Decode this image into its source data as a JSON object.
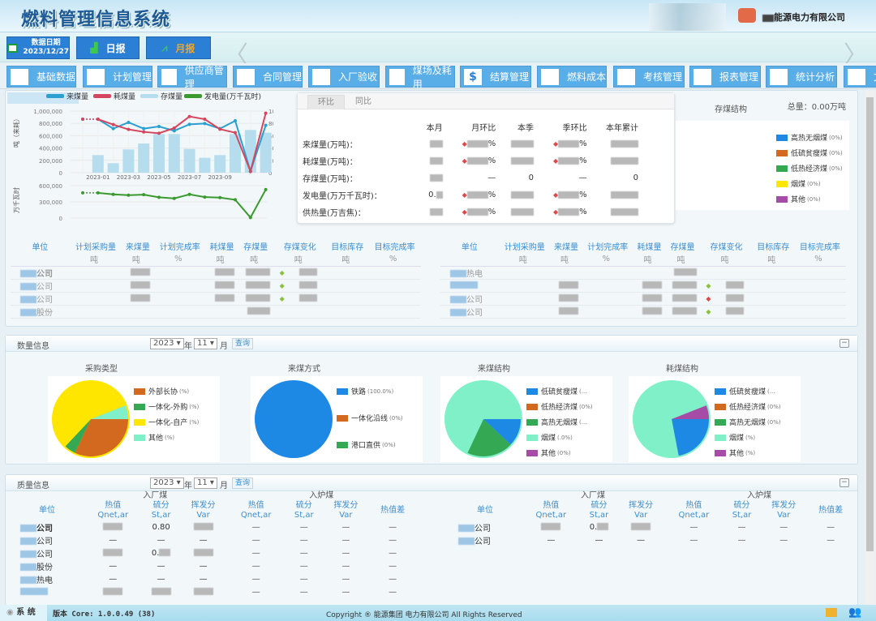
{
  "header": {
    "title": "燃料管理信息系统",
    "company": "能源电力有限公司"
  },
  "toolbar": {
    "date_label": "数据日期",
    "date_value": "2023/12/27",
    "daily": "日报",
    "monthly": "月报"
  },
  "menu": [
    {
      "label": "基础数据",
      "icon": "database-icon"
    },
    {
      "label": "计划管理",
      "icon": "document-icon"
    },
    {
      "label": "供应商管理",
      "icon": "users-icon"
    },
    {
      "label": "合同管理",
      "icon": "contract-icon"
    },
    {
      "label": "入厂验收",
      "icon": "truck-icon"
    },
    {
      "label": "煤场及耗用",
      "icon": "mountain-icon"
    },
    {
      "label": "结算管理",
      "icon": "dollar-icon"
    },
    {
      "label": "燃料成本",
      "icon": "calculator-icon"
    },
    {
      "label": "考核管理",
      "icon": "checklist-icon"
    },
    {
      "label": "报表管理",
      "icon": "clipboard-icon"
    },
    {
      "label": "统计分析",
      "icon": "growth-chart-icon"
    },
    {
      "label": "文",
      "icon": "file-icon"
    }
  ],
  "chart_data": {
    "type": "line",
    "legend": [
      "来煤量",
      "耗煤量",
      "存煤量",
      "发电量(万千瓦时)"
    ],
    "legend_position": "top",
    "x": [
      "2022-12",
      "2023-01",
      "2023-02",
      "2023-03",
      "2023-04",
      "2023-05",
      "2023-06",
      "2023-07",
      "2023-08",
      "2023-09",
      "2023-10",
      "2023-11",
      "2023-12"
    ],
    "x_tick_labels": [
      "2023-01",
      "2023-03",
      "2023-05",
      "2023-07",
      "2023-09"
    ],
    "ylabel": "吨（来耗）",
    "y2label": "(%)",
    "ylim": [
      0,
      1000000
    ],
    "y2lim": [
      0,
      100
    ],
    "y_ticks": [
      "0",
      "200,000",
      "400,000",
      "600,000",
      "800,000",
      "1,000,000"
    ],
    "y2_ticks": [
      "0",
      "20",
      "40",
      "60",
      "80",
      "100"
    ],
    "series": [
      {
        "name": "来煤量",
        "type": "line",
        "color": "#2aa0d0",
        "values": [
          868000,
          868000,
          715000,
          816000,
          715000,
          750000,
          680000,
          785000,
          798000,
          715000,
          842000,
          22000,
          768000
        ]
      },
      {
        "name": "耗煤量",
        "type": "line",
        "color": "#d6455e",
        "values": [
          868000,
          868000,
          781000,
          702000,
          662000,
          640000,
          724000,
          912000,
          868000,
          706000,
          649000,
          22000,
          965000
        ]
      },
      {
        "name": "存煤量",
        "type": "bar",
        "color": "#b6dded",
        "values": [
          null,
          285000,
          154000,
          377000,
          474000,
          627000,
          627000,
          386000,
          241000,
          285000,
          627000,
          693000,
          649000
        ]
      }
    ],
    "sub": {
      "ylabel": "万千瓦时",
      "ylim": [
        0,
        600000
      ],
      "y_ticks": [
        "0",
        "300,000",
        "600,000"
      ],
      "series": [
        {
          "name": "发电量(万千瓦时)",
          "type": "line",
          "color": "#3a9a30",
          "values": [
            467000,
            467000,
            438000,
            423000,
            433000,
            384000,
            364000,
            438000,
            389000,
            379000,
            339000,
            10000,
            526000
          ]
        }
      ]
    },
    "grid": true
  },
  "stats": {
    "tabs": [
      "环比",
      "同比"
    ],
    "columns": [
      "本月",
      "月环比",
      "本季",
      "季环比",
      "本年累计"
    ],
    "rows": [
      {
        "label": "来煤量(万吨)：",
        "cells": [
          null,
          "%",
          null,
          "%",
          null
        ]
      },
      {
        "label": "耗煤量(万吨)：",
        "cells": [
          null,
          "%",
          null,
          "%",
          null
        ]
      },
      {
        "label": "存煤量(万吨)：",
        "cells": [
          null,
          "—",
          "0",
          "—",
          "0"
        ]
      },
      {
        "label": "发电量(万万千瓦时)：",
        "cells": [
          "0.",
          "%",
          null,
          "%",
          null
        ]
      },
      {
        "label": "供热量(万吉焦)：",
        "cells": [
          null,
          "%",
          null,
          "%",
          null
        ]
      }
    ]
  },
  "storage": {
    "title": "存煤结构",
    "total": "总量：0.00万吨",
    "legend": [
      {
        "label": "高热无烟煤",
        "pct": "(0%)",
        "color": "#1e88e5"
      },
      {
        "label": "低硫贫瘦煤",
        "pct": "(0%)",
        "color": "#d2691e"
      },
      {
        "label": "低热经济煤",
        "pct": "(0%)",
        "color": "#34a853"
      },
      {
        "label": "烟煤",
        "pct": "(0%)",
        "color": "#ffe600"
      },
      {
        "label": "其他",
        "pct": "(0%)",
        "color": "#a64ca6"
      }
    ]
  },
  "unit_table": {
    "headers": [
      "单位",
      "计划采购量",
      "来煤量",
      "计划完成率",
      "耗煤量",
      "存煤量",
      "存煤变化",
      "目标库存",
      "目标完成率"
    ],
    "units": [
      "",
      "吨",
      "吨",
      "%",
      "吨",
      "吨",
      "吨",
      "吨",
      "%"
    ],
    "left_rows": [
      {
        "name": "公司",
        "bold": true,
        "change": "g"
      },
      {
        "name": "公司",
        "change": "g"
      },
      {
        "name": "公司",
        "change": "g"
      },
      {
        "name": "股份",
        "change": ""
      }
    ],
    "right_rows": [
      {
        "name": "热电",
        "change": ""
      },
      {
        "name": "",
        "change": "g"
      },
      {
        "name": "公司",
        "change": "r"
      },
      {
        "name": "公司",
        "change": "g"
      }
    ]
  },
  "quantity": {
    "title": "数量信息",
    "year": "2023",
    "year_unit": "年",
    "month": "11",
    "month_unit": "月",
    "query": "查询",
    "pies": [
      {
        "title": "采购类型",
        "slices": [
          {
            "label": "外部长协",
            "pct": "(%)",
            "color": "#d2691e",
            "frac": 0.32
          },
          {
            "label": "一体化-外购",
            "pct": "(%)",
            "color": "#34a853",
            "frac": 0.05
          },
          {
            "label": "一体化-自产",
            "pct": "(%)",
            "color": "#ffe600",
            "frac": 0.57
          },
          {
            "label": "其他",
            "pct": "(%)",
            "color": "#7ff0c8",
            "frac": 0.06
          }
        ]
      },
      {
        "title": "来煤方式",
        "slices": [
          {
            "label": "铁路",
            "pct": "(100.0%)",
            "color": "#1e88e5",
            "frac": 1
          },
          {
            "label": "一体化沿线",
            "pct": "(0%)",
            "color": "#d2691e",
            "frac": 0
          },
          {
            "label": "港口直供",
            "pct": "(0%)",
            "color": "#34a853",
            "frac": 0
          }
        ]
      },
      {
        "title": "来煤结构",
        "slices": [
          {
            "label": "低硫贫瘦煤",
            "pct": "(...",
            "color": "#1e88e5",
            "frac": 0.12
          },
          {
            "label": "低热经济煤",
            "pct": "(0%)",
            "color": "#d2691e",
            "frac": 0
          },
          {
            "label": "高热无烟煤",
            "pct": "(...",
            "color": "#34a853",
            "frac": 0.2
          },
          {
            "label": "烟煤",
            "pct": "(.0%)",
            "color": "#7ff0c8",
            "frac": 0.68
          },
          {
            "label": "其他",
            "pct": "(0%)",
            "color": "#a64ca6",
            "frac": 0
          }
        ]
      },
      {
        "title": "耗煤结构",
        "slices": [
          {
            "label": "低硫贫瘦煤",
            "pct": "(...",
            "color": "#1e88e5",
            "frac": 0.22
          },
          {
            "label": "低热经济煤",
            "pct": "(0%)",
            "color": "#d2691e",
            "frac": 0
          },
          {
            "label": "高热无烟煤",
            "pct": "(0%)",
            "color": "#34a853",
            "frac": 0
          },
          {
            "label": "烟煤",
            "pct": "(%)",
            "color": "#7ff0c8",
            "frac": 0.72
          },
          {
            "label": "其他",
            "pct": "(%)",
            "color": "#a64ca6",
            "frac": 0.06
          }
        ]
      }
    ]
  },
  "quality": {
    "title": "质量信息",
    "year": "2023",
    "year_unit": "年",
    "month": "11",
    "month_unit": "月",
    "query": "查询",
    "group1": "入厂煤",
    "group2": "入炉煤",
    "unit_header": "单位",
    "cols": [
      {
        "l1": "热值",
        "l2": "Qnet,ar"
      },
      {
        "l1": "硫分",
        "l2": "St,ar"
      },
      {
        "l1": "挥发分",
        "l2": "Var"
      }
    ],
    "diff": "热值差",
    "left_rows": [
      {
        "name": "公司",
        "bold": true,
        "v": [
          null,
          "0.80",
          null
        ]
      },
      {
        "name": "公司",
        "v": [
          "—",
          "—",
          "—"
        ]
      },
      {
        "name": "公司",
        "v": [
          null,
          "0.",
          null
        ]
      },
      {
        "name": "股份",
        "v": [
          "—",
          "—",
          "—"
        ]
      },
      {
        "name": "热电",
        "v": [
          "—",
          "—",
          "—"
        ]
      },
      {
        "name": "",
        "v": [
          null,
          null,
          null
        ]
      }
    ],
    "right_rows": [
      {
        "name": "公司",
        "v": [
          null,
          "0.",
          null
        ]
      },
      {
        "name": "公司",
        "v": [
          "—",
          "—",
          "—"
        ]
      }
    ],
    "dash": "—"
  },
  "footer": {
    "system": "系 统",
    "version": "版本 Core: 1.0.0.49 (38)",
    "copyright": "Copyright ® 能源集团 电力有限公司 All Rights Reserved"
  }
}
